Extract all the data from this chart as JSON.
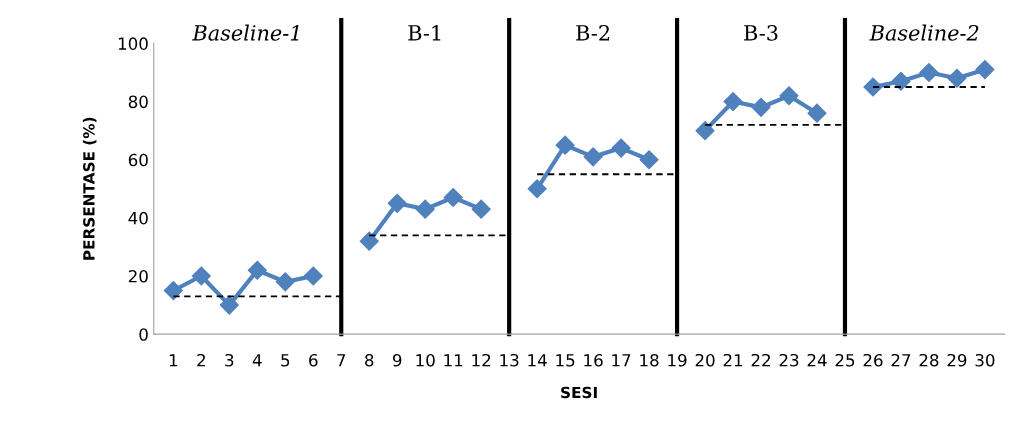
{
  "chart_data": {
    "type": "line",
    "xlabel": "SESI",
    "ylabel": "PERSENTASE (%)",
    "categories": [
      "1",
      "2",
      "3",
      "4",
      "5",
      "6",
      "7",
      "8",
      "9",
      "10",
      "11",
      "12",
      "13",
      "14",
      "15",
      "16",
      "17",
      "18",
      "19",
      "20",
      "21",
      "22",
      "23",
      "24",
      "25",
      "26",
      "27",
      "28",
      "29",
      "30"
    ],
    "series": [
      {
        "color": "#4f81bd",
        "marker": "diamond",
        "line_style": "solid",
        "values": [
          15,
          20,
          10,
          22,
          18,
          20,
          null,
          32,
          45,
          43,
          47,
          43,
          null,
          50,
          65,
          61,
          64,
          60,
          null,
          70,
          80,
          78,
          82,
          76,
          null,
          85,
          87,
          90,
          88,
          91
        ]
      },
      {
        "color": "#000000",
        "marker": "none",
        "line_style": "dashed",
        "values": [
          13,
          13,
          13,
          13,
          13,
          13,
          13,
          null,
          null,
          null,
          null,
          null,
          null,
          null,
          null,
          null,
          null,
          null,
          null,
          null,
          null,
          null,
          null,
          null,
          null,
          null,
          null,
          null,
          null,
          null
        ]
      },
      {
        "color": "#000000",
        "marker": "none",
        "line_style": "dashed",
        "values": [
          null,
          null,
          null,
          null,
          null,
          null,
          null,
          34,
          34,
          34,
          34,
          34,
          34,
          null,
          null,
          null,
          null,
          null,
          null,
          null,
          null,
          null,
          null,
          null,
          null,
          null,
          null,
          null,
          null,
          null
        ]
      },
      {
        "color": "#000000",
        "marker": "none",
        "line_style": "dashed",
        "values": [
          null,
          null,
          null,
          null,
          null,
          null,
          null,
          null,
          null,
          null,
          null,
          null,
          null,
          55,
          55,
          55,
          55,
          55,
          55,
          null,
          null,
          null,
          null,
          null,
          null,
          null,
          null,
          null,
          null,
          null
        ]
      },
      {
        "color": "#000000",
        "marker": "none",
        "line_style": "dashed",
        "values": [
          null,
          null,
          null,
          null,
          null,
          null,
          null,
          null,
          null,
          null,
          null,
          null,
          null,
          null,
          null,
          null,
          null,
          null,
          null,
          72,
          72,
          72,
          72,
          72,
          72,
          null,
          null,
          null,
          null,
          null
        ]
      },
      {
        "color": "#000000",
        "marker": "none",
        "line_style": "dashed",
        "values": [
          null,
          null,
          null,
          null,
          null,
          null,
          null,
          null,
          null,
          null,
          null,
          null,
          null,
          null,
          null,
          null,
          null,
          null,
          null,
          null,
          null,
          null,
          null,
          null,
          null,
          85,
          85,
          85,
          85,
          85
        ]
      }
    ],
    "ref_lines": [
      {
        "axis": "x",
        "value": "7",
        "color": "#000000"
      },
      {
        "axis": "x",
        "value": "13",
        "color": "#000000"
      },
      {
        "axis": "x",
        "value": "19",
        "color": "#000000"
      },
      {
        "axis": "x",
        "value": "25",
        "color": "#000000"
      }
    ],
    "annotations": [
      "Baseline-1",
      "B-1",
      "B-2",
      "B-3",
      "Baseline-2"
    ],
    "ylim": [
      0,
      100
    ],
    "yticks": [
      0,
      20,
      40,
      60,
      80,
      100
    ],
    "grid": false,
    "legend": false
  }
}
